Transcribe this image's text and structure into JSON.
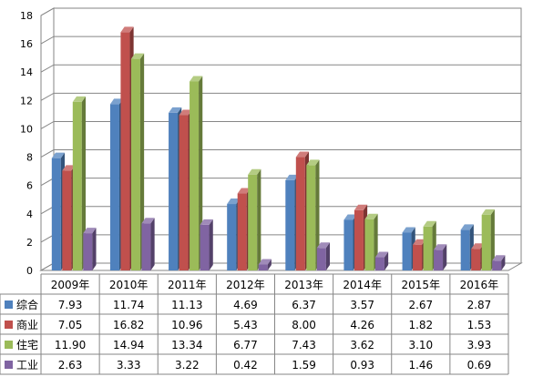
{
  "chart_data": {
    "type": "bar",
    "categories": [
      "2009年",
      "2010年",
      "2011年",
      "2012年",
      "2013年",
      "2014年",
      "2015年",
      "2016年"
    ],
    "series": [
      {
        "name": "综合",
        "values": [
          7.93,
          11.74,
          11.13,
          4.69,
          6.37,
          3.57,
          2.67,
          2.87
        ],
        "color": "#4f81bd"
      },
      {
        "name": "商业",
        "values": [
          7.05,
          16.82,
          10.96,
          5.43,
          8.0,
          4.26,
          1.82,
          1.53
        ],
        "color": "#c0504d"
      },
      {
        "name": "住宅",
        "values": [
          11.9,
          14.94,
          13.34,
          6.77,
          7.43,
          3.62,
          3.1,
          3.93
        ],
        "color": "#9bbb59"
      },
      {
        "name": "工业",
        "values": [
          2.63,
          3.33,
          3.22,
          0.42,
          1.59,
          0.93,
          1.46,
          0.69
        ],
        "color": "#8064a2"
      }
    ],
    "value_labels": [
      [
        "7.93",
        "11.74",
        "11.13",
        "4.69",
        "6.37",
        "3.57",
        "2.67",
        "2.87"
      ],
      [
        "7.05",
        "16.82",
        "10.96",
        "5.43",
        "8.00",
        "4.26",
        "1.82",
        "1.53"
      ],
      [
        "11.90",
        "14.94",
        "13.34",
        "6.77",
        "7.43",
        "3.62",
        "3.10",
        "3.93"
      ],
      [
        "2.63",
        "3.33",
        "3.22",
        "0.42",
        "1.59",
        "0.93",
        "1.46",
        "0.69"
      ]
    ],
    "yticks": [
      "0",
      "2",
      "4",
      "6",
      "8",
      "10",
      "12",
      "14",
      "16",
      "18"
    ],
    "ylim": [
      0,
      18
    ],
    "grid": true,
    "legend": "data-table",
    "style": "3d-clustered-column",
    "title": "",
    "xlabel": "",
    "ylabel": ""
  }
}
